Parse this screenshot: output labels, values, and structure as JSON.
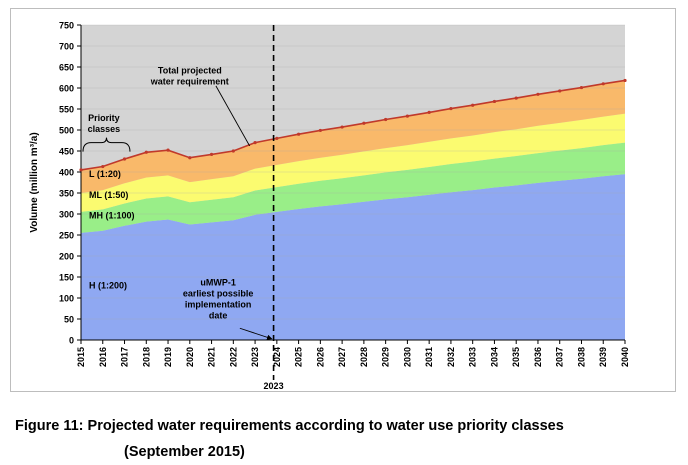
{
  "figure": {
    "caption_line1": "Figure 11: Projected water requirements according to water use priority classes",
    "caption_line2": "(September 2015)"
  },
  "chart_data": {
    "type": "area",
    "stacked": true,
    "title": "",
    "xlabel": "",
    "ylabel": "Volume (million m³/a)",
    "ylim": [
      0,
      750
    ],
    "yticks": [
      0,
      50,
      100,
      150,
      200,
      250,
      300,
      350,
      400,
      450,
      500,
      550,
      600,
      650,
      700,
      750
    ],
    "grid": true,
    "categories": [
      "2015",
      "2016",
      "2017",
      "2018",
      "2019",
      "2020",
      "2021",
      "2022",
      "2023",
      "2024",
      "2025",
      "2026",
      "2027",
      "2028",
      "2029",
      "2030",
      "2031",
      "2032",
      "2033",
      "2034",
      "2035",
      "2036",
      "2037",
      "2038",
      "2039",
      "2040"
    ],
    "series": [
      {
        "name": "H (1:200)",
        "color": "#8fa8f2",
        "values": [
          255,
          260,
          272,
          282,
          287,
          275,
          280,
          285,
          298,
          305,
          312,
          318,
          323,
          329,
          335,
          340,
          346,
          352,
          357,
          363,
          368,
          374,
          379,
          384,
          390,
          395
        ]
      },
      {
        "name": "MH (1:100)",
        "color": "#99ee88",
        "values": [
          50,
          51,
          53,
          55,
          55,
          53,
          54,
          55,
          58,
          59,
          60,
          61,
          62,
          63,
          64,
          65,
          66,
          67,
          68,
          69,
          70,
          71,
          72,
          73,
          74,
          75
        ]
      },
      {
        "name": "ML (1:50)",
        "color": "#fbfb70",
        "values": [
          45,
          46,
          48,
          50,
          50,
          48,
          49,
          50,
          52,
          53,
          54,
          55,
          56,
          57,
          58,
          59,
          60,
          61,
          62,
          63,
          64,
          65,
          66,
          67,
          68,
          69
        ]
      },
      {
        "name": "L (1:20)",
        "color": "#f9b96a",
        "values": [
          55,
          56,
          58,
          60,
          60,
          58,
          59,
          60,
          62,
          63,
          64,
          65,
          66,
          67,
          68,
          69,
          70,
          71,
          72,
          73,
          74,
          75,
          76,
          77,
          78,
          79
        ]
      }
    ],
    "total_line": {
      "color": "#c0392b",
      "values": [
        405,
        413,
        431,
        447,
        452,
        434,
        442,
        450,
        470,
        480,
        490,
        499,
        507,
        516,
        525,
        533,
        542,
        551,
        559,
        568,
        576,
        585,
        593,
        601,
        610,
        618
      ]
    },
    "marker": {
      "x": "2023",
      "label": "2023"
    },
    "annotations": {
      "total": [
        "Total projected",
        "water requirement"
      ],
      "priority": [
        "Priority",
        "classes"
      ],
      "umwp": [
        "uMWP-1",
        "earliest possible",
        "implementation",
        "date"
      ]
    },
    "class_labels": [
      "L (1:20)",
      "ML (1:50)",
      "MH (1:100)",
      "H (1:200)"
    ],
    "class_label_values": [
      395,
      345,
      297,
      130
    ]
  }
}
